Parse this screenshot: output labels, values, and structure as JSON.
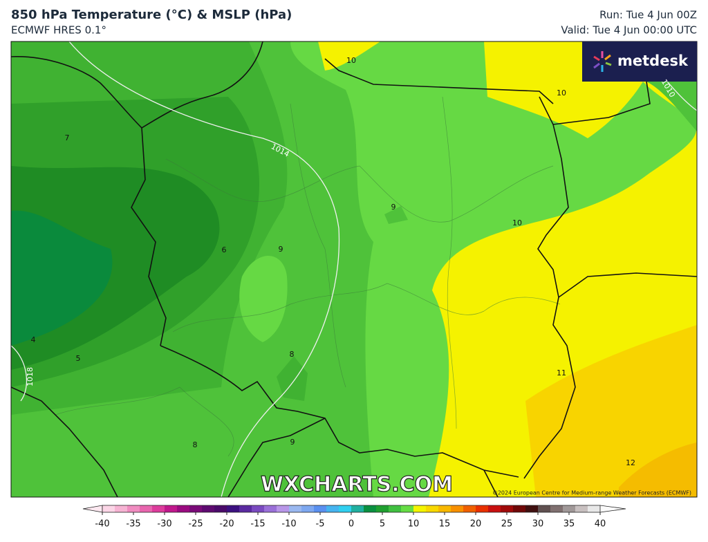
{
  "header": {
    "title": "850 hPa Temperature (°C) & MSLP (hPa)",
    "model": "ECMWF HRES 0.1°",
    "run": "Run: Tue 4 Jun 00Z",
    "valid": "Valid: Tue 4 Jun 00:00 UTC"
  },
  "logo": "metdesk",
  "watermark": "WXCHARTS.COM",
  "copyright": "©2024 European Centre for Medium-range Weather Forecasts (ECMWF)",
  "isotherm_labels": [
    10,
    10,
    7,
    9,
    10,
    6,
    9,
    4,
    5,
    8,
    11,
    8,
    9,
    12
  ],
  "isobar_labels": [
    1014,
    1018,
    1010
  ],
  "colorbar": {
    "range": [
      -40,
      40
    ],
    "ticks": [
      -40,
      -35,
      -30,
      -25,
      -20,
      -15,
      -10,
      -5,
      0,
      5,
      10,
      15,
      20,
      25,
      30,
      35,
      40
    ],
    "colors": [
      "#fbd5e6",
      "#f6b3d3",
      "#f08cc0",
      "#e866ae",
      "#dd3c9c",
      "#c0188c",
      "#9a0a80",
      "#7a0a78",
      "#5e0a70",
      "#4a0a6a",
      "#3c1080",
      "#5a2aa0",
      "#7a4ac0",
      "#9a70d8",
      "#b896e8",
      "#9ab8f0",
      "#7ea8f0",
      "#5a90f0",
      "#46b4f0",
      "#30d0f0",
      "#20b0a0",
      "#0a9040",
      "#20a030",
      "#40c040",
      "#66dd44",
      "#f4f400",
      "#f8d800",
      "#f8b800",
      "#f89000",
      "#f06000",
      "#e83000",
      "#c81010",
      "#a00a0a",
      "#700808",
      "#401010",
      "#605050",
      "#807070",
      "#a09898",
      "#c8c0c0",
      "#e8e8e8"
    ]
  }
}
